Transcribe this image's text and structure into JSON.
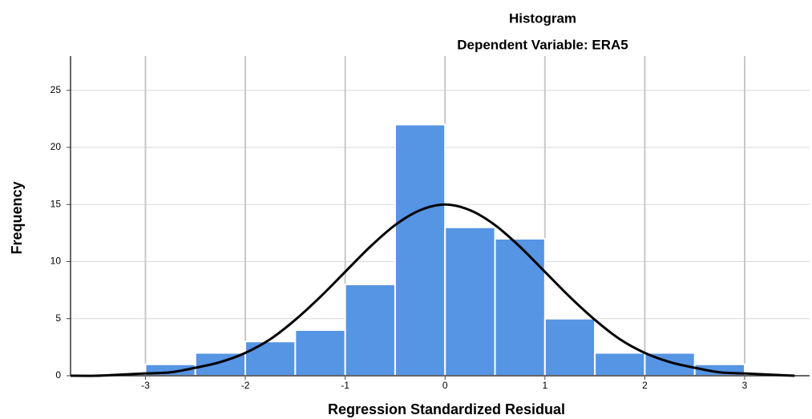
{
  "chart_data": {
    "type": "histogram",
    "title": "Histogram",
    "subtitle": "Dependent Variable: ERA5",
    "x_label": "Regression Standardized Residual",
    "y_label": "Frequency",
    "bins": [
      -3,
      -2.5,
      -2,
      -1.5,
      -1,
      -0.5,
      0,
      0.5,
      1,
      1.5,
      2,
      2.5,
      3
    ],
    "values": [
      1,
      2,
      3,
      4,
      8,
      22,
      13,
      12,
      5,
      2,
      2,
      1
    ],
    "color": "#5694e4",
    "curve": {
      "color": "#000000",
      "x": [
        -3.75,
        -3.5,
        -3.25,
        -3,
        -2.75,
        -2.5,
        -2.25,
        -2,
        -1.75,
        -1.5,
        -1.25,
        -1,
        -0.75,
        -0.5,
        -0.25,
        0,
        0.25,
        0.5,
        0.75,
        1,
        1.25,
        1.5,
        1.75,
        2,
        2.25,
        2.5,
        2.75,
        3,
        3.25,
        3.5
      ],
      "values": [
        0,
        0,
        0.1,
        0.2,
        0.3,
        0.7,
        1.2,
        2,
        3.2,
        4.9,
        6.9,
        9.1,
        11.3,
        13.2,
        14.5,
        15,
        14.5,
        13.2,
        11.3,
        9.1,
        6.9,
        4.9,
        3.2,
        2,
        1.2,
        0.7,
        0.3,
        0.2,
        0.1,
        0
      ]
    },
    "xlim": [
      -3.75,
      3.65
    ],
    "ylim": [
      0,
      28
    ],
    "xticks": [
      -3,
      -2,
      -1,
      0,
      1,
      2,
      3
    ],
    "yticks": [
      0,
      5,
      10,
      15,
      20,
      25
    ],
    "grid": true
  }
}
